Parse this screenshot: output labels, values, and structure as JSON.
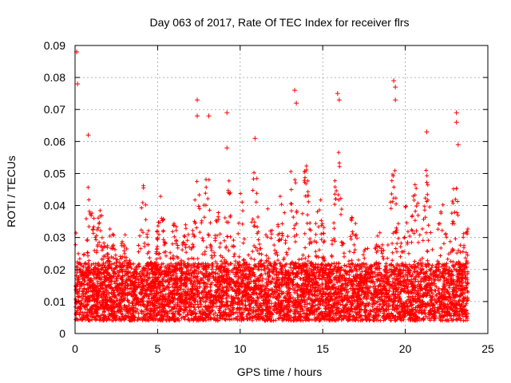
{
  "chart_data": {
    "type": "scatter",
    "title": "Day 063 of 2017, Rate Of TEC Index for receiver flrs",
    "xlabel": "GPS time / hours",
    "ylabel": "ROTI / TECUs",
    "xlim": [
      0,
      25
    ],
    "ylim": [
      0,
      0.09
    ],
    "x_ticks": [
      0,
      5,
      10,
      15,
      20,
      25
    ],
    "y_ticks": [
      0,
      0.01,
      0.02,
      0.03,
      0.04,
      0.05,
      0.06,
      0.07,
      0.08,
      0.09
    ],
    "x_tick_labels": [
      "0",
      "5",
      "10",
      "15",
      "20",
      "25"
    ],
    "y_tick_labels": [
      "0",
      "0.01",
      "0.02",
      "0.03",
      "0.04",
      "0.05",
      "0.06",
      "0.07",
      "0.08",
      "0.09"
    ],
    "grid": true,
    "marker": "+",
    "color": "#ff0000",
    "x_data_range": [
      0,
      23.8
    ],
    "typical_band": [
      0.005,
      0.025
    ],
    "notable_points": [
      {
        "x": 0.1,
        "y": 0.088
      },
      {
        "x": 0.15,
        "y": 0.078
      },
      {
        "x": 0.8,
        "y": 0.062
      },
      {
        "x": 7.4,
        "y": 0.073
      },
      {
        "x": 7.4,
        "y": 0.068
      },
      {
        "x": 8.1,
        "y": 0.068
      },
      {
        "x": 9.2,
        "y": 0.069
      },
      {
        "x": 9.2,
        "y": 0.058
      },
      {
        "x": 10.9,
        "y": 0.061
      },
      {
        "x": 13.3,
        "y": 0.076
      },
      {
        "x": 13.4,
        "y": 0.072
      },
      {
        "x": 15.9,
        "y": 0.075
      },
      {
        "x": 16.0,
        "y": 0.073
      },
      {
        "x": 19.3,
        "y": 0.079
      },
      {
        "x": 19.4,
        "y": 0.077
      },
      {
        "x": 19.4,
        "y": 0.073
      },
      {
        "x": 21.3,
        "y": 0.063
      },
      {
        "x": 23.1,
        "y": 0.069
      },
      {
        "x": 23.1,
        "y": 0.066
      },
      {
        "x": 23.2,
        "y": 0.059
      }
    ],
    "activity_peaks": [
      {
        "x": 0.0,
        "level": 0.032
      },
      {
        "x": 0.9,
        "level": 0.05
      },
      {
        "x": 1.5,
        "level": 0.042
      },
      {
        "x": 2.2,
        "level": 0.037
      },
      {
        "x": 3.0,
        "level": 0.034
      },
      {
        "x": 4.2,
        "level": 0.05
      },
      {
        "x": 5.2,
        "level": 0.044
      },
      {
        "x": 6.0,
        "level": 0.037
      },
      {
        "x": 6.7,
        "level": 0.036
      },
      {
        "x": 7.4,
        "level": 0.058
      },
      {
        "x": 8.0,
        "level": 0.055
      },
      {
        "x": 8.6,
        "level": 0.04
      },
      {
        "x": 9.3,
        "level": 0.05
      },
      {
        "x": 10.0,
        "level": 0.048
      },
      {
        "x": 10.9,
        "level": 0.054
      },
      {
        "x": 11.8,
        "level": 0.045
      },
      {
        "x": 12.5,
        "level": 0.046
      },
      {
        "x": 13.2,
        "level": 0.058
      },
      {
        "x": 14.0,
        "level": 0.055
      },
      {
        "x": 14.8,
        "level": 0.05
      },
      {
        "x": 15.9,
        "level": 0.06
      },
      {
        "x": 16.8,
        "level": 0.042
      },
      {
        "x": 17.6,
        "level": 0.03
      },
      {
        "x": 18.4,
        "level": 0.036
      },
      {
        "x": 19.3,
        "level": 0.057
      },
      {
        "x": 20.0,
        "level": 0.044
      },
      {
        "x": 20.6,
        "level": 0.05
      },
      {
        "x": 21.3,
        "level": 0.052
      },
      {
        "x": 22.2,
        "level": 0.045
      },
      {
        "x": 23.0,
        "level": 0.05
      },
      {
        "x": 23.7,
        "level": 0.038
      }
    ]
  }
}
